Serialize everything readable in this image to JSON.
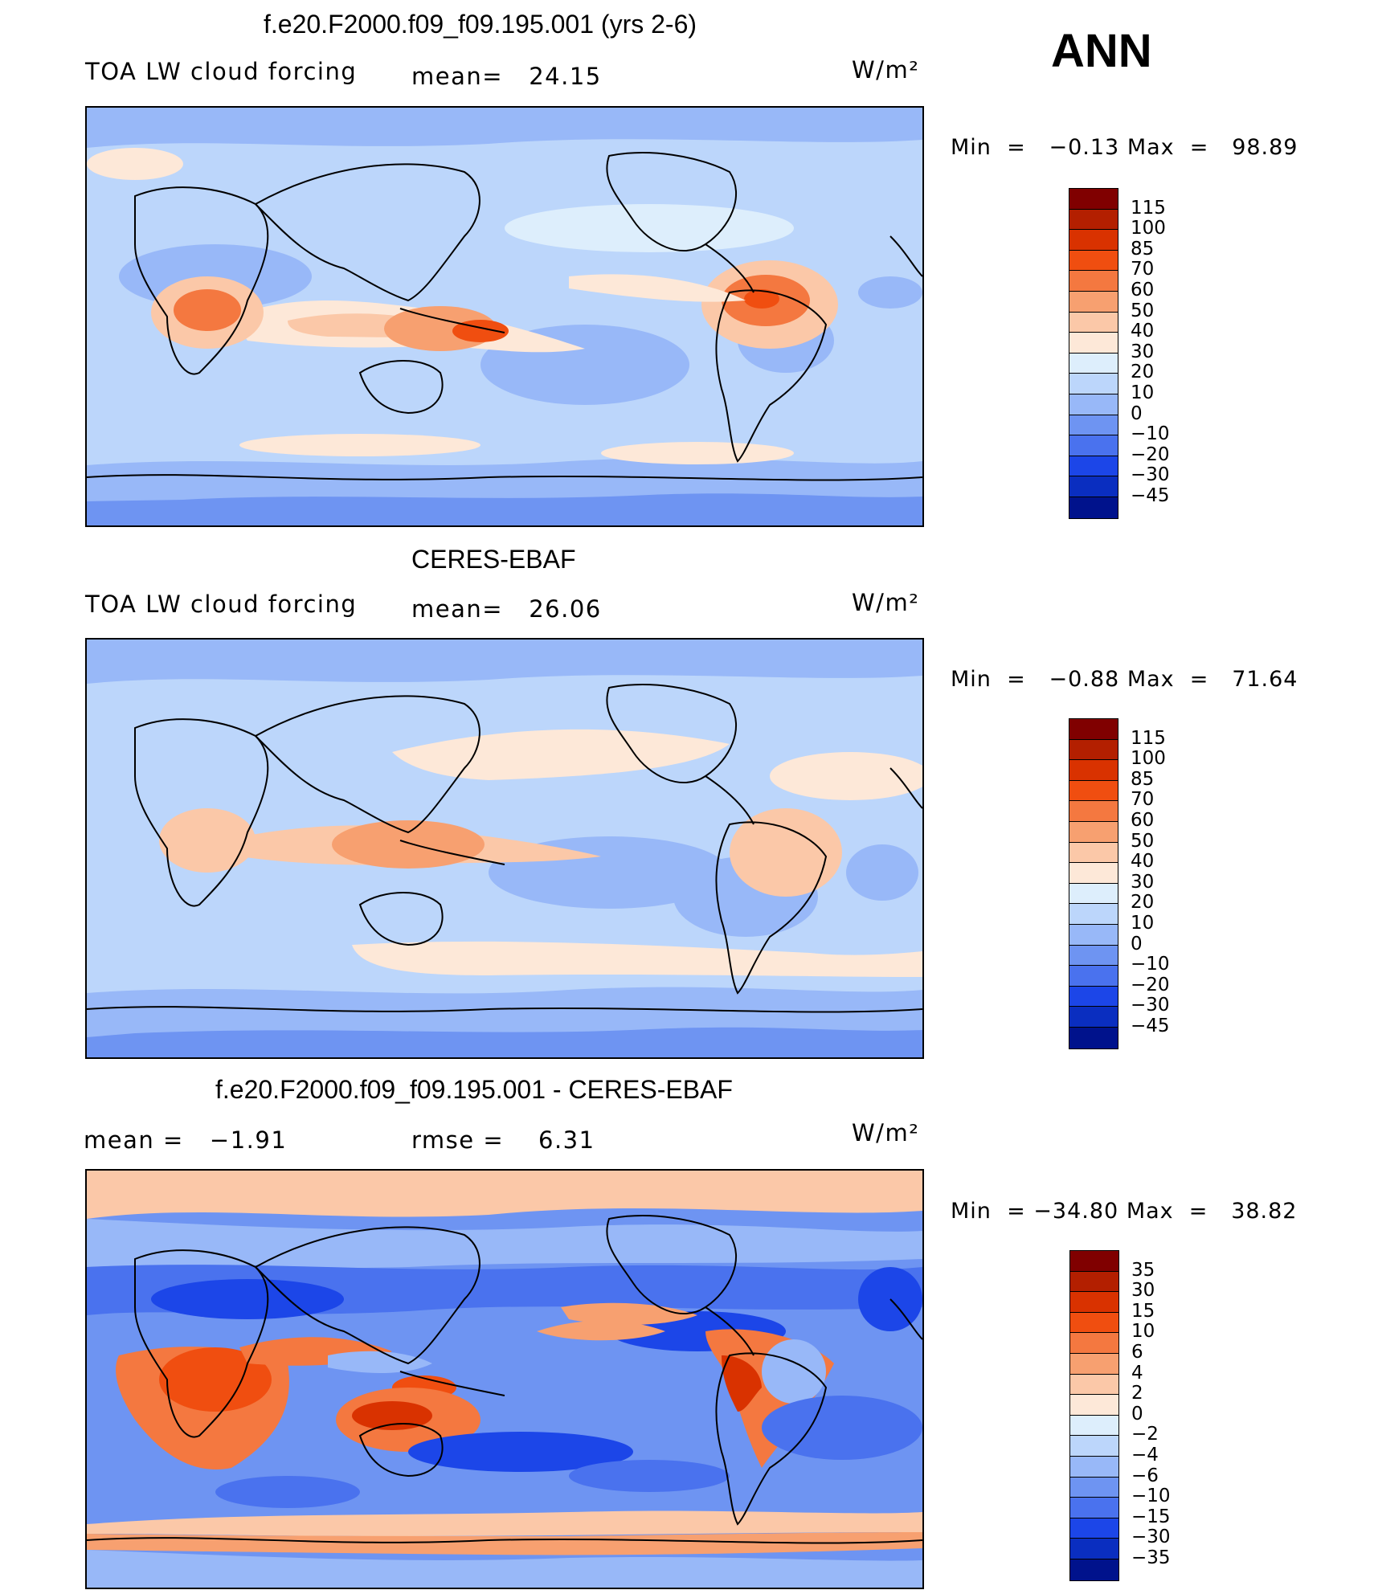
{
  "season": "ANN",
  "panels": [
    {
      "title": "f.e20.F2000.f09_f09.195.001 (yrs 2-6)",
      "left_label": "TOA LW cloud forcing",
      "mid_label": "mean=",
      "mid_value": "24.15",
      "units": "W/m²",
      "stats": {
        "min_label": "Min",
        "min_value": "−0.13",
        "max_label": "Max",
        "max_value": "98.89"
      },
      "levels": [
        "115",
        "100",
        "85",
        "70",
        "60",
        "50",
        "40",
        "30",
        "20",
        "10",
        "0",
        "−10",
        "−20",
        "−30",
        "−45"
      ]
    },
    {
      "title": "CERES-EBAF",
      "left_label": "TOA LW cloud forcing",
      "mid_label": "mean=",
      "mid_value": "26.06",
      "units": "W/m²",
      "stats": {
        "min_label": "Min",
        "min_value": "−0.88",
        "max_label": "Max",
        "max_value": "71.64"
      },
      "levels": [
        "115",
        "100",
        "85",
        "70",
        "60",
        "50",
        "40",
        "30",
        "20",
        "10",
        "0",
        "−10",
        "−20",
        "−30",
        "−45"
      ]
    },
    {
      "title": "f.e20.F2000.f09_f09.195.001 - CERES-EBAF",
      "left_label": "mean =",
      "left_value": "−1.91",
      "mid_label": "rmse =",
      "mid_value": "6.31",
      "units": "W/m²",
      "stats": {
        "min_label": "Min",
        "min_value": "−34.80",
        "max_label": "Max",
        "max_value": "38.82"
      },
      "levels": [
        "35",
        "30",
        "15",
        "10",
        "6",
        "4",
        "2",
        "0",
        "−2",
        "−4",
        "−6",
        "−10",
        "−15",
        "−30",
        "−35"
      ]
    }
  ],
  "colorbar_colors": [
    "#800000",
    "#b31f00",
    "#d93200",
    "#f04e10",
    "#f47840",
    "#f7a070",
    "#fbc8a8",
    "#fde8d8",
    "#ddeefc",
    "#bcd6fb",
    "#98b8f8",
    "#6e94f2",
    "#4a72ee",
    "#1c46e8",
    "#0a2ec0",
    "#00128c"
  ]
}
